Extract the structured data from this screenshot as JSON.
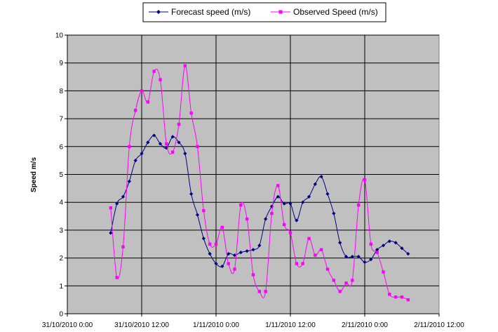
{
  "chart_data": {
    "type": "line",
    "title": "",
    "xlabel": "",
    "ylabel": "Speed m/s",
    "ylim": [
      0,
      10
    ],
    "yticks": [
      "0",
      "1",
      "2",
      "3",
      "4",
      "5",
      "6",
      "7",
      "8",
      "9",
      "10"
    ],
    "xticks": [
      "31/10/2010 0:00",
      "31/10/2010 12:00",
      "1/11/2010 0:00",
      "1/11/2010 12:00",
      "2/11/2010 0:00",
      "2/11/2010 12:00"
    ],
    "xlim": [
      "2010-10-31 00:00",
      "2010-11-02 12:00"
    ],
    "grid": true,
    "legend_position": "top",
    "plot_background": "#c0c0c0",
    "series": [
      {
        "name": "Forecast speed (m/s)",
        "color": "#000080",
        "marker": "diamond",
        "x": [
          "2010-10-31 07:00",
          "2010-10-31 08:00",
          "2010-10-31 09:00",
          "2010-10-31 10:00",
          "2010-10-31 11:00",
          "2010-10-31 12:00",
          "2010-10-31 13:00",
          "2010-10-31 14:00",
          "2010-10-31 15:00",
          "2010-10-31 16:00",
          "2010-10-31 17:00",
          "2010-10-31 18:00",
          "2010-10-31 19:00",
          "2010-10-31 20:00",
          "2010-10-31 21:00",
          "2010-10-31 22:00",
          "2010-10-31 23:00",
          "2010-11-01 00:00",
          "2010-11-01 01:00",
          "2010-11-01 02:00",
          "2010-11-01 03:00",
          "2010-11-01 04:00",
          "2010-11-01 05:00",
          "2010-11-01 06:00",
          "2010-11-01 07:00",
          "2010-11-01 08:00",
          "2010-11-01 09:00",
          "2010-11-01 10:00",
          "2010-11-01 11:00",
          "2010-11-01 12:00",
          "2010-11-01 13:00",
          "2010-11-01 14:00",
          "2010-11-01 15:00",
          "2010-11-01 16:00",
          "2010-11-01 17:00",
          "2010-11-01 18:00",
          "2010-11-01 19:00",
          "2010-11-01 20:00",
          "2010-11-01 21:00",
          "2010-11-01 22:00",
          "2010-11-01 23:00",
          "2010-11-02 00:00",
          "2010-11-02 01:00",
          "2010-11-02 02:00",
          "2010-11-02 03:00",
          "2010-11-02 04:00",
          "2010-11-02 05:00",
          "2010-11-02 06:00",
          "2010-11-02 07:00"
        ],
        "y": [
          2.9,
          3.95,
          4.2,
          4.75,
          5.5,
          5.75,
          6.15,
          6.4,
          6.1,
          5.95,
          6.35,
          6.15,
          5.75,
          4.3,
          3.55,
          2.7,
          2.15,
          1.8,
          1.7,
          2.15,
          2.1,
          2.2,
          2.25,
          2.3,
          2.45,
          3.4,
          3.85,
          4.2,
          3.95,
          3.95,
          3.35,
          4.0,
          4.2,
          4.65,
          4.92,
          4.3,
          3.6,
          2.55,
          2.05,
          2.05,
          2.05,
          1.85,
          1.95,
          2.3,
          2.45,
          2.6,
          2.55,
          2.35,
          2.15
        ]
      },
      {
        "name": "Observed Speed (m/s)",
        "color": "#ff00ff",
        "marker": "square",
        "x": [
          "2010-10-31 07:00",
          "2010-10-31 08:00",
          "2010-10-31 09:00",
          "2010-10-31 10:00",
          "2010-10-31 11:00",
          "2010-10-31 12:00",
          "2010-10-31 13:00",
          "2010-10-31 14:00",
          "2010-10-31 15:00",
          "2010-10-31 16:00",
          "2010-10-31 17:00",
          "2010-10-31 18:00",
          "2010-10-31 19:00",
          "2010-10-31 20:00",
          "2010-10-31 21:00",
          "2010-10-31 22:00",
          "2010-10-31 23:00",
          "2010-11-01 00:00",
          "2010-11-01 01:00",
          "2010-11-01 02:00",
          "2010-11-01 03:00",
          "2010-11-01 04:00",
          "2010-11-01 05:00",
          "2010-11-01 06:00",
          "2010-11-01 07:00",
          "2010-11-01 08:00",
          "2010-11-01 09:00",
          "2010-11-01 10:00",
          "2010-11-01 11:00",
          "2010-11-01 12:00",
          "2010-11-01 13:00",
          "2010-11-01 14:00",
          "2010-11-01 15:00",
          "2010-11-01 16:00",
          "2010-11-01 17:00",
          "2010-11-01 18:00",
          "2010-11-01 19:00",
          "2010-11-01 20:00",
          "2010-11-01 21:00",
          "2010-11-01 22:00",
          "2010-11-01 23:00",
          "2010-11-02 00:00",
          "2010-11-02 01:00",
          "2010-11-02 02:00",
          "2010-11-02 03:00",
          "2010-11-02 04:00",
          "2010-11-02 05:00",
          "2010-11-02 06:00",
          "2010-11-02 07:00"
        ],
        "y": [
          3.8,
          1.3,
          2.4,
          6.0,
          7.3,
          8.0,
          7.6,
          8.7,
          8.4,
          6.1,
          5.8,
          6.8,
          8.9,
          7.2,
          6.0,
          3.7,
          2.5,
          2.5,
          3.1,
          1.8,
          1.6,
          3.9,
          3.4,
          1.4,
          0.8,
          0.8,
          3.6,
          4.6,
          3.2,
          2.9,
          1.8,
          1.8,
          2.7,
          2.1,
          2.3,
          1.6,
          1.2,
          0.8,
          1.1,
          1.2,
          3.9,
          4.8,
          2.5,
          2.2,
          1.5,
          0.7,
          0.6,
          0.6,
          0.5
        ]
      }
    ]
  }
}
